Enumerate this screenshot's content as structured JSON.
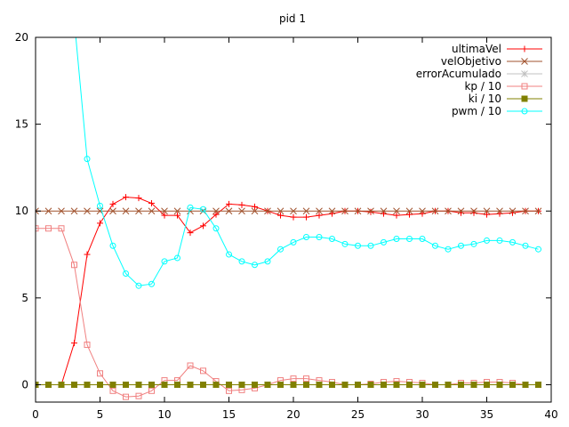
{
  "chart_data": {
    "type": "line",
    "title": "pid 1",
    "xlabel": "",
    "ylabel": "",
    "xlim": [
      0,
      40
    ],
    "ylim": [
      -1,
      20
    ],
    "xticks": [
      0,
      5,
      10,
      15,
      20,
      25,
      30,
      35,
      40
    ],
    "yticks": [
      0,
      5,
      10,
      15,
      20
    ],
    "grid": false,
    "legend_position": "top-right",
    "x": [
      0,
      1,
      2,
      3,
      4,
      5,
      6,
      7,
      8,
      9,
      10,
      11,
      12,
      13,
      14,
      15,
      16,
      17,
      18,
      19,
      20,
      21,
      22,
      23,
      24,
      25,
      26,
      27,
      28,
      29,
      30,
      31,
      32,
      33,
      34,
      35,
      36,
      37,
      38,
      39
    ],
    "series": [
      {
        "name": "ultimaVel",
        "color": "#ff0000",
        "marker": "plus",
        "values": [
          0,
          0,
          0,
          2.4,
          7.5,
          9.3,
          10.4,
          10.8,
          10.75,
          10.45,
          9.75,
          9.75,
          8.75,
          9.15,
          9.8,
          10.4,
          10.35,
          10.25,
          10.0,
          9.75,
          9.65,
          9.65,
          9.75,
          9.85,
          10.0,
          10.0,
          9.95,
          9.85,
          9.75,
          9.8,
          9.85,
          10.0,
          10.0,
          9.9,
          9.9,
          9.8,
          9.85,
          9.9,
          10.0,
          10.0
        ]
      },
      {
        "name": "velObjetivo",
        "color": "#a0522d",
        "marker": "cross",
        "values": [
          10,
          10,
          10,
          10,
          10,
          10,
          10,
          10,
          10,
          10,
          10,
          10,
          10,
          10,
          10,
          10,
          10,
          10,
          10,
          10,
          10,
          10,
          10,
          10,
          10,
          10,
          10,
          10,
          10,
          10,
          10,
          10,
          10,
          10,
          10,
          10,
          10,
          10,
          10,
          10
        ]
      },
      {
        "name": "errorAcumulado",
        "color": "#c0c0c0",
        "marker": "star",
        "values": [
          0,
          0,
          0,
          0,
          0,
          0,
          0,
          0,
          0,
          0,
          0,
          0,
          0,
          0,
          0,
          0,
          0,
          0,
          0,
          0,
          0,
          0,
          0,
          0,
          0,
          0,
          0,
          0,
          0,
          0,
          0,
          0,
          0,
          0,
          0,
          0,
          0,
          0,
          0,
          0
        ]
      },
      {
        "name": "kp / 10",
        "color": "#f08080",
        "marker": "square",
        "values": [
          9,
          9,
          9,
          6.9,
          2.3,
          0.65,
          -0.35,
          -0.7,
          -0.65,
          -0.35,
          0.25,
          0.25,
          1.1,
          0.8,
          0.2,
          -0.35,
          -0.3,
          -0.2,
          0,
          0.25,
          0.35,
          0.35,
          0.25,
          0.15,
          0,
          0,
          0.05,
          0.15,
          0.2,
          0.15,
          0.1,
          0,
          0,
          0.1,
          0.1,
          0.15,
          0.15,
          0.1,
          0,
          0
        ]
      },
      {
        "name": "ki / 10",
        "color": "#808000",
        "marker": "filled-square",
        "values": [
          0,
          0,
          0,
          0,
          0,
          0,
          0,
          0,
          0,
          0,
          0,
          0,
          0,
          0,
          0,
          0,
          0,
          0,
          0,
          0,
          0,
          0,
          0,
          0,
          0,
          0,
          0,
          0,
          0,
          0,
          0,
          0,
          0,
          0,
          0,
          0,
          0,
          0,
          0,
          0
        ]
      },
      {
        "name": "pwm / 10",
        "color": "#00ffff",
        "marker": "circle",
        "values": [
          null,
          null,
          null,
          null,
          13,
          10.3,
          8,
          6.4,
          5.7,
          5.8,
          7.1,
          7.3,
          10.2,
          10.1,
          9,
          7.5,
          7.1,
          6.9,
          7.1,
          7.8,
          8.2,
          8.5,
          8.5,
          8.4,
          8.1,
          8.0,
          8.0,
          8.2,
          8.4,
          8.4,
          8.4,
          8.0,
          7.8,
          8.0,
          8.1,
          8.3,
          8.3,
          8.2,
          8.0,
          7.8
        ],
        "extra_points": [
          [
            3,
            21
          ]
        ]
      }
    ]
  }
}
